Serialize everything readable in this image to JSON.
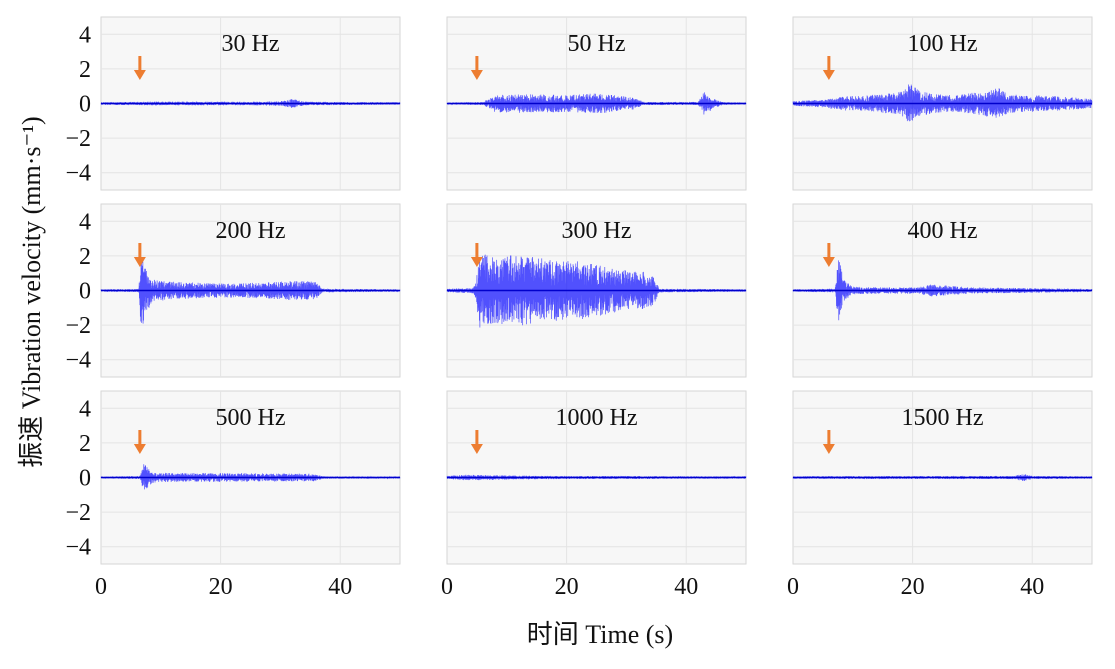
{
  "figure": {
    "ylabel": "振速 Vibration velocity (mm·s⁻¹)",
    "xlabel": "时间 Time (s)",
    "trace_color": "#1a1aff",
    "arrow_color": "#ed7d31",
    "panel_bg": "#f7f7f7",
    "grid_color": "#e4e4e4"
  },
  "chart_data": [
    {
      "type": "line",
      "title": "30 Hz",
      "xlim": [
        0,
        50
      ],
      "ylim": [
        -5,
        5
      ],
      "xticks": [
        0,
        20,
        40
      ],
      "yticks": [
        -4,
        -2,
        0,
        2,
        4
      ],
      "arrow_time": 6.5,
      "envelope": {
        "t": [
          0,
          8,
          15,
          25,
          30,
          32,
          34,
          40,
          50
        ],
        "amp": [
          0.08,
          0.12,
          0.12,
          0.12,
          0.15,
          0.3,
          0.12,
          0.1,
          0.08
        ]
      }
    },
    {
      "type": "line",
      "title": "50 Hz",
      "xlim": [
        0,
        50
      ],
      "ylim": [
        -5,
        5
      ],
      "xticks": [
        0,
        20,
        40
      ],
      "yticks": [
        -4,
        -2,
        0,
        2,
        4
      ],
      "arrow_time": 5.0,
      "envelope": {
        "t": [
          0,
          6,
          8,
          12,
          20,
          25,
          29,
          31,
          33,
          42,
          43,
          44.5,
          46,
          50
        ],
        "amp": [
          0.06,
          0.1,
          0.55,
          0.6,
          0.55,
          0.65,
          0.5,
          0.4,
          0.1,
          0.1,
          0.75,
          0.35,
          0.1,
          0.06
        ]
      }
    },
    {
      "type": "line",
      "title": "100 Hz",
      "xlim": [
        0,
        50
      ],
      "ylim": [
        -5,
        5
      ],
      "xticks": [
        0,
        20,
        40
      ],
      "yticks": [
        -4,
        -2,
        0,
        2,
        4
      ],
      "arrow_time": 6.0,
      "envelope": {
        "t": [
          0,
          5,
          8,
          12,
          18,
          19.5,
          21,
          24,
          28,
          34.5,
          36,
          42,
          45,
          50
        ],
        "amp": [
          0.15,
          0.25,
          0.45,
          0.5,
          0.75,
          1.3,
          0.85,
          0.6,
          0.55,
          1.0,
          0.6,
          0.5,
          0.45,
          0.3
        ]
      }
    },
    {
      "type": "line",
      "title": "200 Hz",
      "xlim": [
        0,
        50
      ],
      "ylim": [
        -5,
        5
      ],
      "xticks": [
        0,
        20,
        40
      ],
      "yticks": [
        -4,
        -2,
        0,
        2,
        4
      ],
      "arrow_time": 6.5,
      "envelope": {
        "t": [
          0,
          6.3,
          6.8,
          7.3,
          9,
          13,
          20,
          27,
          33,
          36,
          37,
          50
        ],
        "amp": [
          0.08,
          0.1,
          3.0,
          1.5,
          0.7,
          0.55,
          0.45,
          0.5,
          0.65,
          0.55,
          0.12,
          0.08
        ]
      }
    },
    {
      "type": "line",
      "title": "300 Hz",
      "xlim": [
        0,
        50
      ],
      "ylim": [
        -5,
        5
      ],
      "xticks": [
        0,
        20,
        40
      ],
      "yticks": [
        -4,
        -2,
        0,
        2,
        4
      ],
      "arrow_time": 5.0,
      "envelope": {
        "t": [
          0,
          4.5,
          5.5,
          8,
          12,
          17,
          22,
          27,
          32,
          34.5,
          35.5,
          50
        ],
        "amp": [
          0.1,
          0.2,
          2.4,
          2.2,
          2.3,
          2.0,
          1.9,
          1.5,
          1.3,
          1.0,
          0.12,
          0.08
        ]
      }
    },
    {
      "type": "line",
      "title": "400 Hz",
      "xlim": [
        0,
        50
      ],
      "ylim": [
        -5,
        5
      ],
      "xticks": [
        0,
        20,
        40
      ],
      "yticks": [
        -4,
        -2,
        0,
        2,
        4
      ],
      "arrow_time": 6.0,
      "envelope": {
        "t": [
          0,
          7,
          7.6,
          8.5,
          10,
          15,
          21,
          23,
          26,
          30,
          40,
          50
        ],
        "amp": [
          0.08,
          0.12,
          2.2,
          0.7,
          0.25,
          0.2,
          0.2,
          0.4,
          0.3,
          0.2,
          0.15,
          0.1
        ]
      }
    },
    {
      "type": "line",
      "title": "500 Hz",
      "xlim": [
        0,
        50
      ],
      "ylim": [
        -5,
        5
      ],
      "xticks": [
        0,
        20,
        40
      ],
      "yticks": [
        -4,
        -2,
        0,
        2,
        4
      ],
      "arrow_time": 6.5,
      "envelope": {
        "t": [
          0,
          6.5,
          7.2,
          8.5,
          10,
          20,
          30,
          36,
          37,
          50
        ],
        "amp": [
          0.06,
          0.1,
          0.95,
          0.35,
          0.3,
          0.28,
          0.26,
          0.25,
          0.08,
          0.06
        ]
      }
    },
    {
      "type": "line",
      "title": "1000 Hz",
      "xlim": [
        0,
        50
      ],
      "ylim": [
        -5,
        5
      ],
      "xticks": [
        0,
        20,
        40
      ],
      "yticks": [
        -4,
        -2,
        0,
        2,
        4
      ],
      "arrow_time": 5.0,
      "envelope": {
        "t": [
          0,
          3,
          8,
          12,
          20,
          30,
          40,
          50
        ],
        "amp": [
          0.1,
          0.18,
          0.15,
          0.12,
          0.1,
          0.1,
          0.08,
          0.08
        ]
      }
    },
    {
      "type": "line",
      "title": "1500 Hz",
      "xlim": [
        0,
        50
      ],
      "ylim": [
        -5,
        5
      ],
      "xticks": [
        0,
        20,
        40
      ],
      "yticks": [
        -4,
        -2,
        0,
        2,
        4
      ],
      "arrow_time": 6.0,
      "envelope": {
        "t": [
          0,
          10,
          20,
          37,
          38.5,
          40,
          50
        ],
        "amp": [
          0.08,
          0.1,
          0.1,
          0.1,
          0.25,
          0.1,
          0.08
        ]
      }
    }
  ]
}
